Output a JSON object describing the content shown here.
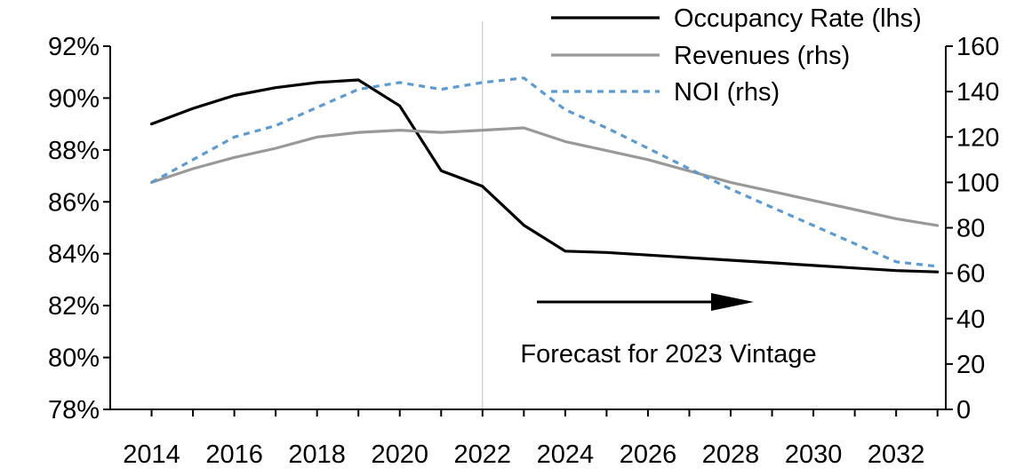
{
  "chart_data": {
    "type": "line",
    "title": "",
    "xlabel": "",
    "x": [
      2014,
      2015,
      2016,
      2017,
      2018,
      2019,
      2020,
      2021,
      2022,
      2023,
      2024,
      2025,
      2026,
      2027,
      2028,
      2029,
      2030,
      2031,
      2032,
      2033
    ],
    "x_ticks": [
      "2014",
      "2016",
      "2018",
      "2020",
      "2022",
      "2024",
      "2026",
      "2028",
      "2030",
      "2032"
    ],
    "x_tick_values": [
      2014,
      2016,
      2018,
      2020,
      2022,
      2024,
      2026,
      2028,
      2030,
      2032
    ],
    "xlim": [
      2013,
      2033.2
    ],
    "y_left": {
      "ylabel": "",
      "ylim": [
        78,
        92
      ],
      "ticks": [
        78,
        80,
        82,
        84,
        86,
        88,
        90,
        92
      ],
      "tick_labels": [
        "78%",
        "80%",
        "82%",
        "84%",
        "86%",
        "88%",
        "90%",
        "92%"
      ]
    },
    "y_right": {
      "ylabel": "",
      "ylim": [
        0,
        160
      ],
      "ticks": [
        0,
        20,
        40,
        60,
        80,
        100,
        120,
        140,
        160
      ],
      "tick_labels": [
        "0",
        "20",
        "40",
        "60",
        "80",
        "100",
        "120",
        "140",
        "160"
      ]
    },
    "series": [
      {
        "name": "Occupancy Rate (lhs)",
        "axis": "left",
        "color": "#000000",
        "style": "solid",
        "values": [
          89.0,
          89.6,
          90.1,
          90.4,
          90.6,
          90.7,
          89.7,
          87.2,
          86.6,
          85.1,
          84.1,
          84.05,
          83.95,
          83.85,
          83.75,
          83.65,
          83.55,
          83.45,
          83.35,
          83.3
        ]
      },
      {
        "name": "Revenues (rhs)",
        "axis": "right",
        "color": "#999999",
        "style": "solid",
        "values": [
          100,
          106,
          111,
          115,
          120,
          122,
          123,
          122,
          123,
          124,
          118,
          114,
          110,
          105,
          100,
          96,
          92,
          88,
          84,
          81
        ]
      },
      {
        "name": "NOI (rhs)",
        "axis": "right",
        "color": "#5B9BD5",
        "style": "dashed",
        "values": [
          100,
          110,
          120,
          125,
          133,
          141,
          144,
          141,
          144,
          146,
          132,
          124,
          115,
          106,
          97,
          89,
          81,
          73,
          65,
          63
        ]
      }
    ],
    "legend": {
      "placement": "top-right",
      "entries": [
        "Occupancy Rate (lhs)",
        "Revenues (rhs)",
        "NOI (rhs)"
      ]
    },
    "annotations": {
      "forecast_label": "Forecast for 2023 Vintage",
      "forecast_divider_x": 2022
    }
  }
}
